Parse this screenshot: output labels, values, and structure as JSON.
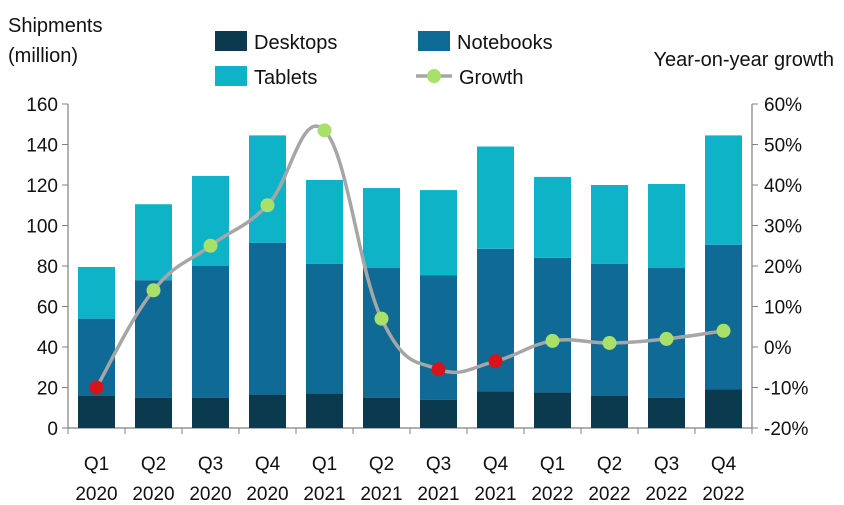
{
  "chart_data": {
    "type": "bar",
    "title": "",
    "ylabel_left_line1": "Shipments",
    "ylabel_left_line2": "(million)",
    "ylabel_right": "Year-on-year growth",
    "categories": [
      {
        "quarter": "Q1",
        "year": "2020"
      },
      {
        "quarter": "Q2",
        "year": "2020"
      },
      {
        "quarter": "Q3",
        "year": "2020"
      },
      {
        "quarter": "Q4",
        "year": "2020"
      },
      {
        "quarter": "Q1",
        "year": "2021"
      },
      {
        "quarter": "Q2",
        "year": "2021"
      },
      {
        "quarter": "Q3",
        "year": "2021"
      },
      {
        "quarter": "Q4",
        "year": "2021"
      },
      {
        "quarter": "Q1",
        "year": "2022"
      },
      {
        "quarter": "Q2",
        "year": "2022"
      },
      {
        "quarter": "Q3",
        "year": "2022"
      },
      {
        "quarter": "Q4",
        "year": "2022"
      }
    ],
    "ylim_left": [
      0,
      160
    ],
    "yticks_left": [
      0,
      20,
      40,
      60,
      80,
      100,
      120,
      140,
      160
    ],
    "ylim_right": [
      -20,
      60
    ],
    "yticks_right": [
      -20,
      -10,
      0,
      10,
      20,
      30,
      40,
      50,
      60
    ],
    "yticks_right_labels": [
      "-20%",
      "-10%",
      "0%",
      "10%",
      "20%",
      "30%",
      "40%",
      "50%",
      "60%"
    ],
    "series": [
      {
        "name": "Desktops",
        "kind": "stacked-bar",
        "color": "#0b3a4f",
        "values": [
          16,
          15,
          15,
          16.5,
          17,
          15,
          14,
          18,
          17.5,
          16,
          15,
          19
        ]
      },
      {
        "name": "Notebooks",
        "kind": "stacked-bar",
        "color": "#0f6a96",
        "values": [
          38,
          58,
          65,
          75,
          64,
          64,
          61.5,
          70.5,
          66.5,
          65,
          64,
          71.5
        ]
      },
      {
        "name": "Tablets",
        "kind": "stacked-bar",
        "color": "#0fb3c8",
        "values": [
          25.5,
          37.5,
          44.5,
          53,
          41.5,
          39.5,
          42,
          50.5,
          40,
          39,
          41.5,
          54
        ]
      },
      {
        "name": "Growth",
        "kind": "line",
        "axis": "right",
        "line_color": "#a6a6a6",
        "marker_color": "#a8e06a",
        "negative_marker_color": "#d7141a",
        "values": [
          -10,
          14,
          25,
          35,
          53.5,
          7,
          -5.5,
          -3.5,
          1.5,
          1,
          2,
          4
        ]
      }
    ],
    "legend": [
      {
        "label": "Desktops",
        "color": "#0b3a4f",
        "shape": "box"
      },
      {
        "label": "Notebooks",
        "color": "#0f6a96",
        "shape": "box"
      },
      {
        "label": "Tablets",
        "color": "#0fb3c8",
        "shape": "box"
      },
      {
        "label": "Growth",
        "color": "#a8e06a",
        "shape": "line-marker"
      }
    ],
    "legend_position": "top",
    "grid": false
  }
}
